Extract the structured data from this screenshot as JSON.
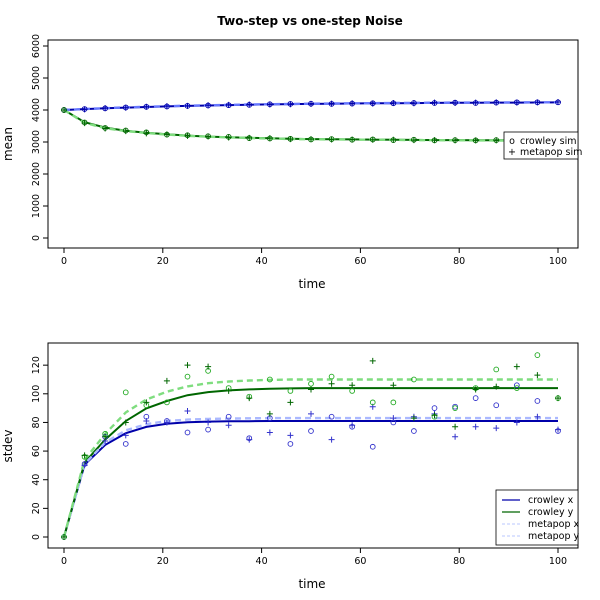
{
  "title": "Two-step vs one-step Noise",
  "chart_data": [
    {
      "type": "line",
      "name": "mean",
      "xlabel": "time",
      "ylabel": "mean",
      "xlim": [
        0,
        100
      ],
      "ylim": [
        0,
        6000
      ],
      "xticks": [
        0,
        20,
        40,
        60,
        80,
        100
      ],
      "yticks": [
        0,
        1000,
        2000,
        3000,
        4000,
        5000,
        6000
      ],
      "legend_position": "right",
      "legend": [
        {
          "label": "crowley sim",
          "symbol": "o"
        },
        {
          "label": "metapop sim",
          "symbol": "+"
        }
      ],
      "x": [
        0,
        4.17,
        8.33,
        12.5,
        16.67,
        20.83,
        25,
        29.17,
        33.33,
        37.5,
        41.67,
        45.83,
        50,
        54.17,
        58.33,
        62.5,
        66.67,
        70.83,
        75,
        79.17,
        83.33,
        87.5,
        91.67,
        95.83,
        100
      ],
      "series": [
        {
          "name": "upper crowley",
          "color": "#0000aa",
          "style": "solid",
          "values": [
            4000,
            4027,
            4052,
            4075,
            4095,
            4113,
            4128,
            4142,
            4154,
            4165,
            4175,
            4183,
            4191,
            4197,
            4203,
            4208,
            4213,
            4217,
            4221,
            4224,
            4227,
            4230,
            4232,
            4234,
            4236
          ]
        },
        {
          "name": "upper metapop",
          "color": "#6677ff",
          "style": "dashed",
          "values": [
            4000,
            4030,
            4056,
            4080,
            4100,
            4118,
            4134,
            4148,
            4160,
            4171,
            4181,
            4189,
            4197,
            4203,
            4209,
            4214,
            4219,
            4223,
            4227,
            4230,
            4233,
            4236,
            4238,
            4240,
            4242
          ]
        },
        {
          "name": "lower crowley",
          "color": "#006600",
          "style": "solid",
          "values": [
            4000,
            3620,
            3450,
            3350,
            3290,
            3240,
            3200,
            3170,
            3150,
            3130,
            3115,
            3100,
            3090,
            3085,
            3080,
            3075,
            3070,
            3065,
            3060,
            3058,
            3055,
            3053,
            3052,
            3051,
            3050
          ]
        },
        {
          "name": "lower metapop",
          "color": "#7fdd7f",
          "style": "dashed",
          "values": [
            4000,
            3600,
            3430,
            3340,
            3280,
            3230,
            3195,
            3165,
            3145,
            3125,
            3110,
            3095,
            3085,
            3080,
            3075,
            3070,
            3065,
            3060,
            3055,
            3053,
            3050,
            3048,
            3047,
            3046,
            3045
          ]
        }
      ],
      "points": [
        {
          "name": "upper crowley sim",
          "marker": "o",
          "color": "#0000aa",
          "values": [
            4000,
            4030,
            4050,
            4080,
            4100,
            4110,
            4130,
            4140,
            4150,
            4160,
            4180,
            4190,
            4195,
            4190,
            4200,
            4210,
            4210,
            4220,
            4220,
            4230,
            4220,
            4230,
            4240,
            4240,
            4240
          ]
        },
        {
          "name": "upper metapop sim",
          "marker": "+",
          "color": "#0000aa",
          "values": [
            4000,
            4020,
            4060,
            4070,
            4100,
            4120,
            4130,
            4150,
            4160,
            4170,
            4170,
            4180,
            4190,
            4200,
            4210,
            4200,
            4220,
            4210,
            4230,
            4220,
            4230,
            4240,
            4230,
            4240,
            4250
          ]
        },
        {
          "name": "lower crowley sim",
          "marker": "o",
          "color": "#006600",
          "values": [
            4000,
            3610,
            3440,
            3360,
            3300,
            3230,
            3210,
            3180,
            3160,
            3120,
            3110,
            3100,
            3080,
            3090,
            3070,
            3080,
            3060,
            3070,
            3050,
            3060,
            3050,
            3060,
            3040,
            3050,
            3050
          ]
        },
        {
          "name": "lower metapop sim",
          "marker": "+",
          "color": "#006600",
          "values": [
            4000,
            3590,
            3420,
            3340,
            3270,
            3240,
            3190,
            3170,
            3140,
            3130,
            3120,
            3090,
            3090,
            3080,
            3080,
            3070,
            3070,
            3060,
            3060,
            3050,
            3050,
            3050,
            3050,
            3040,
            3040
          ]
        }
      ]
    },
    {
      "type": "line",
      "name": "stdev",
      "xlabel": "time",
      "ylabel": "stdev",
      "xlim": [
        0,
        100
      ],
      "ylim": [
        0,
        125
      ],
      "xticks": [
        0,
        20,
        40,
        60,
        80,
        100
      ],
      "yticks": [
        0,
        20,
        40,
        60,
        80,
        100,
        120
      ],
      "legend_position": "bottom-right",
      "legend": [
        {
          "label": "crowley x",
          "color": "#0000aa",
          "style": "solid"
        },
        {
          "label": "crowley y",
          "color": "#006600",
          "style": "solid"
        },
        {
          "label": "metapop x",
          "color": "#c8d2ff",
          "style": "dashed"
        },
        {
          "label": "metapop y",
          "color": "#c8d2ff",
          "style": "dashed"
        }
      ],
      "x": [
        0,
        4.17,
        8.33,
        12.5,
        16.67,
        20.83,
        25,
        29.17,
        33.33,
        37.5,
        41.67,
        45.83,
        50,
        54.17,
        58.33,
        62.5,
        66.67,
        70.83,
        75,
        79.17,
        83.33,
        87.5,
        91.67,
        95.83,
        100
      ],
      "series": [
        {
          "name": "crowley x",
          "color": "#0000aa",
          "style": "solid",
          "values": [
            0,
            50.5,
            64.3,
            72.5,
            76.9,
            79.1,
            80.1,
            80.6,
            80.8,
            80.9,
            81.0,
            81.0,
            81.0,
            81.0,
            81.0,
            81.0,
            81.0,
            81.0,
            81.0,
            81.0,
            81.0,
            81.0,
            81.0,
            81.0,
            81.0
          ]
        },
        {
          "name": "crowley y",
          "color": "#006600",
          "style": "solid",
          "values": [
            0,
            52.0,
            68.0,
            81.0,
            89.8,
            95.0,
            99.0,
            101.2,
            102.4,
            103.1,
            103.5,
            103.8,
            104.0,
            104.0,
            104.0,
            104.0,
            104.0,
            104.0,
            104.0,
            104.0,
            104.0,
            104.0,
            104.0,
            104.0,
            104.0
          ]
        },
        {
          "name": "metapop x",
          "color": "#aab8ff",
          "style": "dashed",
          "values": [
            0,
            51.0,
            66.0,
            74.5,
            78.8,
            81.0,
            82.0,
            82.5,
            82.7,
            82.9,
            83.0,
            83.0,
            83.0,
            83.0,
            83.0,
            83.0,
            83.0,
            83.0,
            83.0,
            83.0,
            83.0,
            83.0,
            83.0,
            83.0,
            83.0
          ]
        },
        {
          "name": "metapop y",
          "color": "#7fdd7f",
          "style": "dashed",
          "values": [
            0,
            54.0,
            72.0,
            87.0,
            96.0,
            101.5,
            105.2,
            107.4,
            108.6,
            109.3,
            109.7,
            110.0,
            110.0,
            110.0,
            110.0,
            110.0,
            110.0,
            110.0,
            110.0,
            110.0,
            110.0,
            110.0,
            110.0,
            110.0,
            110.0
          ]
        }
      ],
      "points": [
        {
          "name": "crowley x sim",
          "marker": "o",
          "color": "#3333cc",
          "values": [
            0,
            51,
            70,
            65,
            84,
            81,
            73,
            75,
            84,
            69,
            83,
            65,
            74,
            84,
            77,
            63,
            80,
            74,
            90,
            91,
            97,
            92,
            106,
            95,
            74
          ]
        },
        {
          "name": "metapop x sim",
          "marker": "+",
          "color": "#3333cc",
          "values": [
            0,
            50,
            67,
            71,
            81,
            80,
            88,
            80,
            78,
            68,
            73,
            71,
            86,
            68,
            78,
            91,
            83,
            84,
            86,
            70,
            77,
            76,
            80,
            84,
            75
          ]
        },
        {
          "name": "crowley y sim",
          "marker": "o",
          "color": "#22aa22",
          "values": [
            0,
            56,
            72,
            101,
            92,
            94,
            112,
            116,
            104,
            98,
            110,
            102,
            107,
            112,
            102,
            94,
            94,
            110,
            84,
            90,
            104,
            117,
            104,
            127,
            97
          ]
        },
        {
          "name": "metapop y sim",
          "marker": "+",
          "color": "#006600",
          "values": [
            0,
            57,
            70,
            80,
            94,
            109,
            120,
            119,
            102,
            97,
            86,
            94,
            103,
            107,
            106,
            123,
            106,
            83,
            85,
            77,
            103,
            105,
            119,
            113,
            97
          ]
        }
      ]
    }
  ]
}
